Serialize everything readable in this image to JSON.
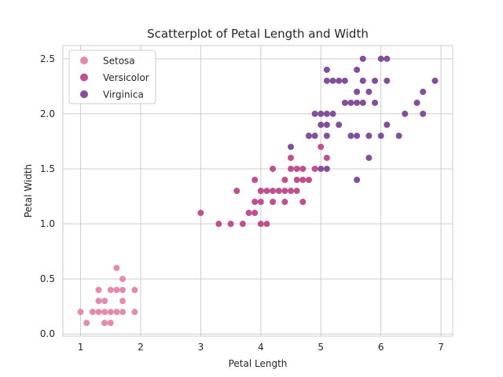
{
  "chart_data": {
    "type": "scatter",
    "title": "Scatterplot of Petal Length and Width",
    "xlabel": "Petal Length",
    "ylabel": "Petal Width",
    "xlim": [
      0.705,
      7.195
    ],
    "ylim": [
      -0.02,
      2.62
    ],
    "xticks": [
      1,
      2,
      3,
      4,
      5,
      6,
      7
    ],
    "xtick_labels": [
      "1",
      "2",
      "3",
      "4",
      "5",
      "6",
      "7"
    ],
    "yticks": [
      0.0,
      0.5,
      1.0,
      1.5,
      2.0,
      2.5
    ],
    "ytick_labels": [
      "0.0",
      "0.5",
      "1.0",
      "1.5",
      "2.0",
      "2.5"
    ],
    "grid": true,
    "legend_position": "top-left",
    "series": [
      {
        "name": "Setosa",
        "color": "#e38aad",
        "points": [
          [
            1.0,
            0.2
          ],
          [
            1.1,
            0.1
          ],
          [
            1.2,
            0.2
          ],
          [
            1.3,
            0.2
          ],
          [
            1.3,
            0.3
          ],
          [
            1.3,
            0.4
          ],
          [
            1.4,
            0.1
          ],
          [
            1.4,
            0.2
          ],
          [
            1.4,
            0.3
          ],
          [
            1.5,
            0.1
          ],
          [
            1.5,
            0.2
          ],
          [
            1.5,
            0.4
          ],
          [
            1.6,
            0.2
          ],
          [
            1.6,
            0.4
          ],
          [
            1.6,
            0.6
          ],
          [
            1.7,
            0.2
          ],
          [
            1.7,
            0.3
          ],
          [
            1.7,
            0.4
          ],
          [
            1.7,
            0.5
          ],
          [
            1.9,
            0.2
          ],
          [
            1.9,
            0.4
          ]
        ]
      },
      {
        "name": "Versicolor",
        "color": "#c0508d",
        "points": [
          [
            3.0,
            1.1
          ],
          [
            3.3,
            1.0
          ],
          [
            3.5,
            1.0
          ],
          [
            3.6,
            1.3
          ],
          [
            3.7,
            1.0
          ],
          [
            3.8,
            1.1
          ],
          [
            3.9,
            1.1
          ],
          [
            3.9,
            1.2
          ],
          [
            3.9,
            1.4
          ],
          [
            4.0,
            1.0
          ],
          [
            4.0,
            1.2
          ],
          [
            4.0,
            1.3
          ],
          [
            4.1,
            1.0
          ],
          [
            4.1,
            1.3
          ],
          [
            4.2,
            1.2
          ],
          [
            4.2,
            1.3
          ],
          [
            4.2,
            1.5
          ],
          [
            4.3,
            1.3
          ],
          [
            4.4,
            1.2
          ],
          [
            4.4,
            1.3
          ],
          [
            4.4,
            1.4
          ],
          [
            4.5,
            1.3
          ],
          [
            4.5,
            1.5
          ],
          [
            4.5,
            1.6
          ],
          [
            4.6,
            1.3
          ],
          [
            4.6,
            1.4
          ],
          [
            4.6,
            1.5
          ],
          [
            4.7,
            1.2
          ],
          [
            4.7,
            1.4
          ],
          [
            4.7,
            1.5
          ],
          [
            4.8,
            1.4
          ],
          [
            4.8,
            1.8
          ],
          [
            4.9,
            1.5
          ],
          [
            5.0,
            1.7
          ],
          [
            5.1,
            1.6
          ]
        ]
      },
      {
        "name": "Virginica",
        "color": "#82509a",
        "points": [
          [
            4.5,
            1.7
          ],
          [
            4.8,
            1.8
          ],
          [
            4.9,
            1.8
          ],
          [
            4.9,
            2.0
          ],
          [
            5.0,
            1.5
          ],
          [
            5.0,
            1.9
          ],
          [
            5.0,
            2.0
          ],
          [
            5.1,
            1.5
          ],
          [
            5.1,
            1.8
          ],
          [
            5.1,
            1.9
          ],
          [
            5.1,
            2.0
          ],
          [
            5.1,
            2.3
          ],
          [
            5.1,
            2.4
          ],
          [
            5.2,
            2.0
          ],
          [
            5.2,
            2.3
          ],
          [
            5.3,
            1.9
          ],
          [
            5.3,
            2.3
          ],
          [
            5.4,
            2.1
          ],
          [
            5.4,
            2.3
          ],
          [
            5.5,
            1.8
          ],
          [
            5.5,
            2.1
          ],
          [
            5.6,
            1.4
          ],
          [
            5.6,
            1.8
          ],
          [
            5.6,
            2.1
          ],
          [
            5.6,
            2.2
          ],
          [
            5.6,
            2.4
          ],
          [
            5.7,
            2.1
          ],
          [
            5.7,
            2.3
          ],
          [
            5.7,
            2.5
          ],
          [
            5.8,
            1.6
          ],
          [
            5.8,
            1.8
          ],
          [
            5.8,
            2.2
          ],
          [
            5.9,
            2.1
          ],
          [
            5.9,
            2.3
          ],
          [
            6.0,
            1.8
          ],
          [
            6.0,
            2.5
          ],
          [
            6.1,
            1.9
          ],
          [
            6.1,
            2.3
          ],
          [
            6.1,
            2.5
          ],
          [
            6.3,
            1.8
          ],
          [
            6.4,
            2.0
          ],
          [
            6.6,
            2.1
          ],
          [
            6.7,
            2.0
          ],
          [
            6.7,
            2.2
          ],
          [
            6.9,
            2.3
          ]
        ]
      }
    ]
  }
}
